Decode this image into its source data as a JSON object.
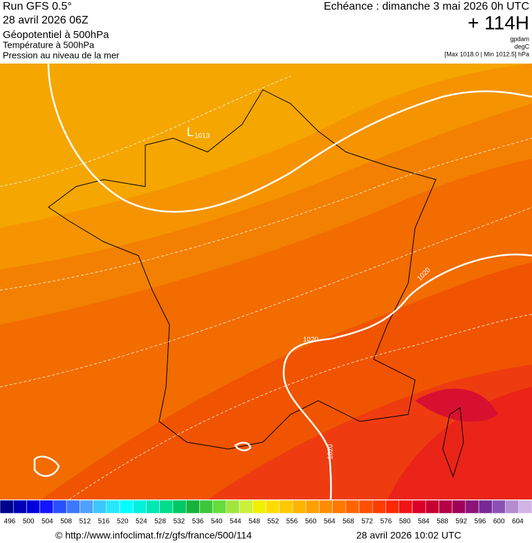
{
  "header": {
    "run": "Run GFS 0.5°",
    "run_date": "28 avril 2026 06Z",
    "field1": "Géopotentiel à 500hPa",
    "field2": "Température à 500hPa",
    "field3": "Pression au niveau de la mer",
    "forecast": "Echéance : dimanche 3 mai 2026 0h UTC",
    "lead": "+ 114H",
    "unit1": "gpdam",
    "unit2": "degC",
    "pressure_range": "[Max 1018.0 | Min 1012.5] hPa"
  },
  "map": {
    "low_symbol": "L",
    "low_value": "1013",
    "isobar_labels": [
      "1020",
      "1020",
      "1020"
    ]
  },
  "colorbar": {
    "labels": [
      496,
      500,
      504,
      508,
      512,
      516,
      520,
      524,
      528,
      532,
      536,
      540,
      544,
      548,
      552,
      556,
      560,
      564,
      568,
      572,
      576,
      580,
      584,
      588,
      592,
      596,
      600,
      604
    ],
    "colors": [
      "#00008c",
      "#0000b4",
      "#0000dc",
      "#1414ff",
      "#2850ff",
      "#3c78ff",
      "#50a0ff",
      "#3cc8ff",
      "#28e6ff",
      "#00ffff",
      "#00f0dc",
      "#00e6b4",
      "#00dc8c",
      "#00c864",
      "#14b43c",
      "#3cc83c",
      "#64dc3c",
      "#a0e63c",
      "#c8f03c",
      "#f0f000",
      "#ffdc00",
      "#ffc800",
      "#ffb400",
      "#ffa000",
      "#ff8c00",
      "#ff7800",
      "#ff6400",
      "#ff5000",
      "#ff3c00",
      "#ff2800",
      "#f01414",
      "#dc0028",
      "#c80032",
      "#b40046",
      "#a0005a",
      "#8c1478",
      "#782896",
      "#8c50b4",
      "#b48cd2",
      "#d2b4e6"
    ]
  },
  "footer": {
    "source": "© http://www.infoclimat.fr/z/gfs/france/500/114",
    "generated": "28 avril 2026 10:02 UTC"
  }
}
